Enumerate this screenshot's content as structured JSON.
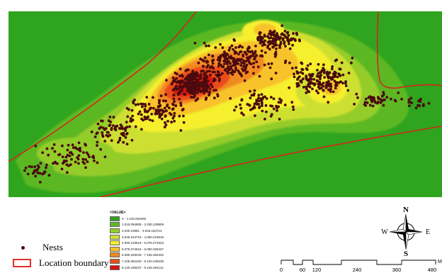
{
  "map": {
    "colors": {
      "background_green": "#2fa41e",
      "boundary": "#d8231f",
      "nest_dot": "#4a0a0e"
    }
  },
  "legend": {
    "nests_label": "Nests",
    "boundary_label": "Location boundary"
  },
  "value_legend": {
    "title": "<VALUE>",
    "classes": [
      {
        "label": "0 - 1.015.054905",
        "color": "#2fa41e"
      },
      {
        "label": "1.015.054906 - 2.030.109809",
        "color": "#5cb823"
      },
      {
        "label": "2.030.10981 - 3.045.164714",
        "color": "#94cc2a"
      },
      {
        "label": "3.045.164715 - 4.060.219618",
        "color": "#cde032"
      },
      {
        "label": "4.060.219619 - 5.075.274523",
        "color": "#f5ef2e"
      },
      {
        "label": "5.075.274524 - 6.090.329427",
        "color": "#f7c22a"
      },
      {
        "label": "6.090.329428 - 7.105.384332",
        "color": "#f28a22"
      },
      {
        "label": "7.105.384333 - 8.120.439236",
        "color": "#ea4d1a"
      },
      {
        "label": "8.120.439237 - 9.135.494141",
        "color": "#d9140f"
      }
    ]
  },
  "compass": {
    "n": "N",
    "s": "S",
    "e": "E",
    "w": "W"
  },
  "scale": {
    "ticks": [
      "0",
      "60",
      "120",
      "240",
      "360",
      "480"
    ],
    "unit": "M"
  }
}
